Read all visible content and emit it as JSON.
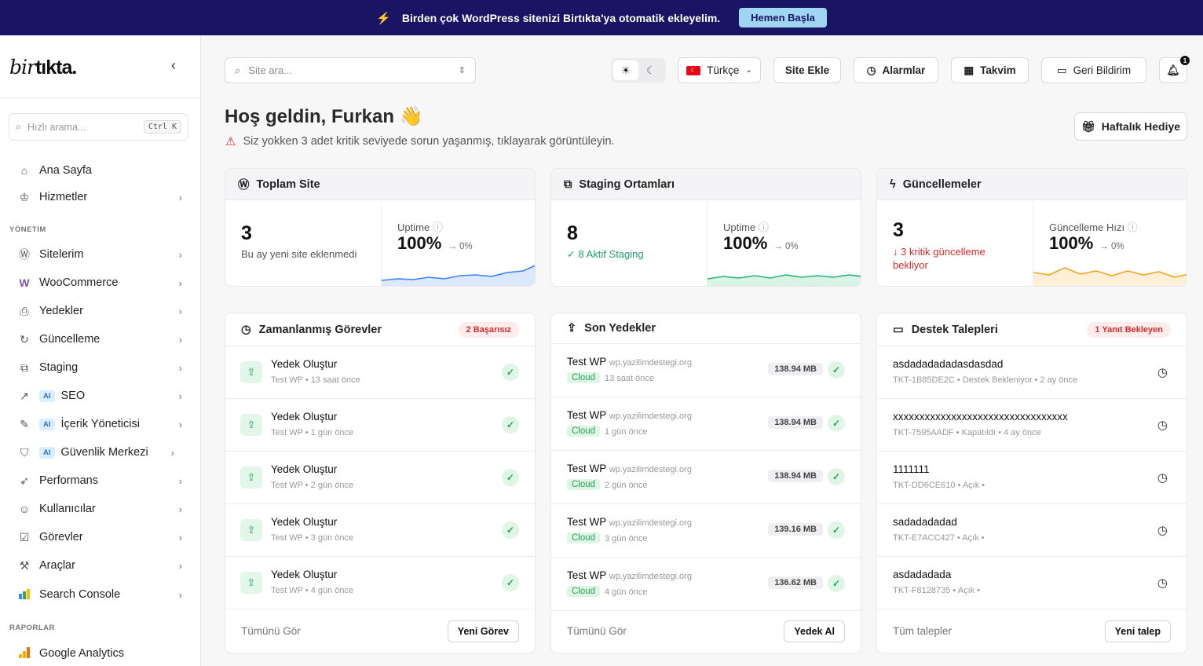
{
  "banner": {
    "text": "Birden çok WordPress sitenizi Birtıkta'ya otomatik ekleyelim.",
    "cta": "Hemen Başla"
  },
  "sidebar": {
    "logo_light": "bir",
    "logo_bold": "tıkta.",
    "quick_search": {
      "placeholder": "Hızlı arama...",
      "shortcut": "Ctrl K"
    },
    "top_items": [
      {
        "label": "Ana Sayfa"
      },
      {
        "label": "Hizmetler"
      }
    ],
    "section_management": "YÖNETİM",
    "items": [
      {
        "label": "Sitelerim"
      },
      {
        "label": "WooCommerce"
      },
      {
        "label": "Yedekler"
      },
      {
        "label": "Güncelleme"
      },
      {
        "label": "Staging"
      },
      {
        "label": "SEO",
        "ai": "AI"
      },
      {
        "label": "İçerik Yöneticisi",
        "ai": "AI"
      },
      {
        "label": "Güvenlik Merkezi",
        "ai": "AI"
      },
      {
        "label": "Performans"
      },
      {
        "label": "Kullanıcılar"
      },
      {
        "label": "Görevler"
      },
      {
        "label": "Araçlar"
      },
      {
        "label": "Search Console"
      }
    ],
    "section_reports": "RAPORLAR",
    "report_items": [
      {
        "label": "Google Analytics"
      }
    ]
  },
  "topbar": {
    "search_placeholder": "Site ara...",
    "language": "Türkçe",
    "buttons": {
      "add_site": "Site Ekle",
      "alarms": "Alarmlar",
      "calendar": "Takvim",
      "feedback": "Geri Bildirim"
    },
    "notification_count": "1"
  },
  "welcome": {
    "title": "Hoş geldin, Furkan 👋",
    "warning": "Siz yokken 3 adet kritik seviyede sorun yaşanmış, tıklayarak görüntüleyin.",
    "gift": "Haftalık Hediye"
  },
  "stats": [
    {
      "title": "Toplam Site",
      "value": "3",
      "sub": "Bu ay yeni site eklenmedi",
      "metric_label": "Uptime",
      "metric_value": "100%",
      "delta": "→ 0%",
      "color": "#3b82f6"
    },
    {
      "title": "Staging Ortamları",
      "value": "8",
      "sub": "✓ 8 Aktif Staging",
      "metric_label": "Uptime",
      "metric_value": "100%",
      "delta": "→ 0%",
      "color": "#22b573"
    },
    {
      "title": "Güncellemeler",
      "value": "3",
      "sub": "↓ 3 kritik güncelleme bekliyor",
      "metric_label": "Güncelleme Hızı",
      "metric_value": "100%",
      "delta": "→ 0%",
      "color": "#f5a524"
    }
  ],
  "tasks": {
    "title": "Zamanlanmış Görevler",
    "badge": "2 Başarısız",
    "rows": [
      {
        "title": "Yedek Oluştur",
        "sub": "Test WP • 13 saat önce"
      },
      {
        "title": "Yedek Oluştur",
        "sub": "Test WP • 1 gün önce"
      },
      {
        "title": "Yedek Oluştur",
        "sub": "Test WP • 2 gün önce"
      },
      {
        "title": "Yedek Oluştur",
        "sub": "Test WP • 3 gün önce"
      },
      {
        "title": "Yedek Oluştur",
        "sub": "Test WP • 4 gün önce"
      }
    ],
    "footer_link": "Tümünü Gör",
    "footer_button": "Yeni Görev"
  },
  "backups": {
    "title": "Son Yedekler",
    "rows": [
      {
        "site": "Test WP",
        "domain": "wp.yazilimdestegi.org",
        "tag": "Cloud",
        "time": "13 saat önce",
        "size": "138.94 MB"
      },
      {
        "site": "Test WP",
        "domain": "wp.yazilimdestegi.org",
        "tag": "Cloud",
        "time": "1 gün önce",
        "size": "138.94 MB"
      },
      {
        "site": "Test WP",
        "domain": "wp.yazilimdestegi.org",
        "tag": "Cloud",
        "time": "2 gün önce",
        "size": "138.94 MB"
      },
      {
        "site": "Test WP",
        "domain": "wp.yazilimdestegi.org",
        "tag": "Cloud",
        "time": "3 gün önce",
        "size": "139.16 MB"
      },
      {
        "site": "Test WP",
        "domain": "wp.yazilimdestegi.org",
        "tag": "Cloud",
        "time": "4 gün önce",
        "size": "136.62 MB"
      }
    ],
    "footer_link": "Tümünü Gör",
    "footer_button": "Yedek Al"
  },
  "tickets": {
    "title": "Destek Talepleri",
    "badge": "1 Yanıt Bekleyen",
    "rows": [
      {
        "title": "asdadadadadasdasdad",
        "sub": "TKT-1B85DE2C • Destek Bekleniyor • 2 ay önce"
      },
      {
        "title": "xxxxxxxxxxxxxxxxxxxxxxxxxxxxxxxxx",
        "sub": "TKT-7595AADF • Kapatıldı • 4 ay önce"
      },
      {
        "title": "1111111",
        "sub": "TKT-DD6CE610 • Açık •"
      },
      {
        "title": "sadadadadad",
        "sub": "TKT-E7ACC427 • Açık •"
      },
      {
        "title": "asdadadada",
        "sub": "TKT-F8128735 • Açık •"
      }
    ],
    "footer_link": "Tüm talepler",
    "footer_button": "Yeni talep"
  }
}
